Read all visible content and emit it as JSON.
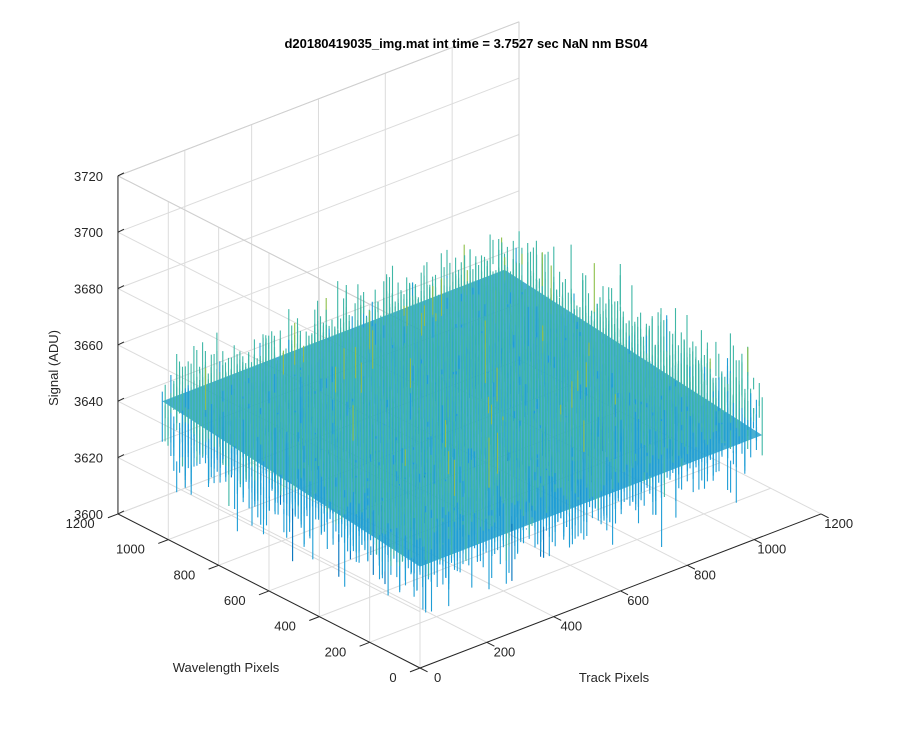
{
  "chart_data": {
    "type": "surface",
    "title": "d20180419035_img.mat int time = 3.7527 sec  NaN nm BS04",
    "xlabel": "Track Pixels",
    "ylabel": "Wavelength Pixels",
    "zlabel": "Signal (ADU)",
    "xlim": [
      0,
      1200
    ],
    "ylim": [
      0,
      1200
    ],
    "zlim": [
      3600,
      3720
    ],
    "x_ticks": [
      "0",
      "200",
      "400",
      "600",
      "800",
      "1000",
      "1200"
    ],
    "y_ticks": [
      "0",
      "200",
      "400",
      "600",
      "800",
      "1000",
      "1200"
    ],
    "z_ticks": [
      "3600",
      "3620",
      "3640",
      "3660",
      "3680",
      "3700",
      "3720"
    ],
    "surface_extent": {
      "x": [
        0,
        1024
      ],
      "y": [
        0,
        1024
      ]
    },
    "surface_mean": 3642,
    "surface_noise_range": [
      3610,
      3690
    ],
    "colormap": [
      "#0072bd",
      "#1f9ed6",
      "#3fb7a6",
      "#8dc04a",
      "#e0b020"
    ],
    "grid": true
  }
}
